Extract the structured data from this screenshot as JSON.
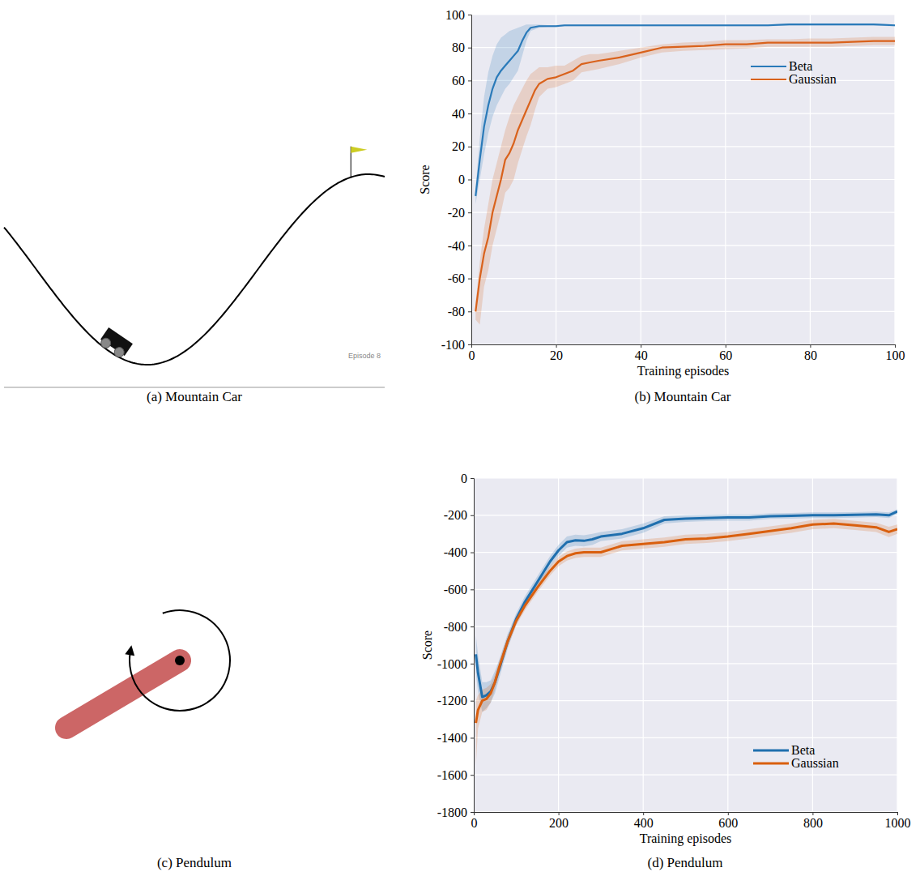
{
  "chart_data": [
    {
      "type": "illustration",
      "caption": "(a) Mountain Car",
      "annotation": "Episode 8"
    },
    {
      "type": "line",
      "caption": "(b) Mountain Car",
      "x_label": "Training episodes",
      "y_label": "Score",
      "x": [
        1,
        2,
        3,
        4,
        5,
        6,
        7,
        8,
        9,
        10,
        11,
        12,
        13,
        14,
        15,
        16,
        18,
        20,
        22,
        24,
        26,
        28,
        30,
        35,
        40,
        45,
        50,
        55,
        60,
        65,
        70,
        75,
        80,
        85,
        90,
        95,
        100
      ],
      "xlim": [
        0,
        100
      ],
      "xticks": [
        0,
        20,
        40,
        60,
        80,
        100
      ],
      "ylim": [
        -100,
        100
      ],
      "yticks": [
        -100,
        -80,
        -60,
        -40,
        -20,
        0,
        20,
        40,
        60,
        80,
        100
      ],
      "grid": true,
      "legend": "upper right",
      "series": [
        {
          "name": "Beta",
          "color": "#2a7ab9",
          "values": [
            -10,
            12,
            32,
            45,
            55,
            62,
            66,
            69,
            72,
            75,
            78,
            84,
            89,
            92,
            92.5,
            93,
            93,
            93,
            93.5,
            93.5,
            93.5,
            93.5,
            93.5,
            93.5,
            93.5,
            93.5,
            93.5,
            93.5,
            93.5,
            93.5,
            93.5,
            94,
            94,
            94,
            94,
            94,
            93.5
          ],
          "upper": [
            -5,
            25,
            50,
            65,
            75,
            82,
            86,
            88,
            90,
            91,
            92,
            93,
            94,
            94,
            94,
            94,
            93.6,
            93.6,
            94.1,
            94.1,
            94.1,
            94.1,
            94.1,
            94.1,
            94.1,
            94.1,
            94.1,
            94.1,
            94.1,
            94.1,
            94.1,
            94.6,
            94.6,
            94.6,
            94.6,
            94.6,
            94.1
          ],
          "lower": [
            -15,
            0,
            15,
            28,
            38,
            45,
            50,
            55,
            58,
            62,
            66,
            75,
            84,
            90,
            91,
            92,
            92.4,
            92.4,
            92.9,
            92.9,
            92.9,
            92.9,
            92.9,
            92.9,
            92.9,
            92.9,
            92.9,
            92.9,
            92.9,
            92.9,
            92.9,
            93.4,
            93.4,
            93.4,
            93.4,
            93.4,
            92.9
          ]
        },
        {
          "name": "Gaussian",
          "color": "#d9621c",
          "values": [
            -80,
            -60,
            -45,
            -35,
            -20,
            -10,
            0,
            12,
            16,
            22,
            30,
            36,
            42,
            48,
            54,
            58,
            61,
            62,
            64,
            66,
            70,
            71,
            72,
            74,
            77,
            80,
            80.5,
            81,
            82,
            82,
            83,
            83,
            83,
            83,
            83.5,
            84,
            84
          ],
          "upper": [
            -75,
            -50,
            -30,
            -15,
            0,
            10,
            20,
            30,
            38,
            45,
            50,
            55,
            60,
            64,
            66,
            68,
            68,
            69,
            69,
            72,
            75,
            76,
            76,
            78,
            80,
            82,
            83,
            83.5,
            84.5,
            84.5,
            85,
            85,
            85.5,
            85.5,
            86,
            86.5,
            86.5
          ],
          "lower": [
            -85,
            -88,
            -65,
            -55,
            -40,
            -30,
            -20,
            -8,
            -5,
            0,
            10,
            18,
            26,
            33,
            42,
            50,
            55,
            56,
            58,
            60,
            65,
            66,
            67,
            70,
            74,
            77,
            78,
            78.5,
            79,
            79.5,
            80.5,
            80.5,
            80.5,
            80.5,
            81,
            81.5,
            81.5
          ]
        }
      ]
    },
    {
      "type": "illustration",
      "caption": "(c) Pendulum"
    },
    {
      "type": "line",
      "caption": "(d) Pendulum",
      "x_label": "Training episodes",
      "y_label": "Score",
      "x": [
        5,
        10,
        20,
        30,
        40,
        50,
        60,
        80,
        100,
        120,
        150,
        180,
        200,
        220,
        240,
        260,
        280,
        300,
        350,
        400,
        450,
        500,
        550,
        600,
        650,
        700,
        750,
        800,
        850,
        900,
        950,
        980,
        1000
      ],
      "xlim": [
        0,
        1000
      ],
      "xticks": [
        0,
        200,
        400,
        600,
        800,
        1000
      ],
      "ylim": [
        -1800,
        0
      ],
      "yticks": [
        -1800,
        -1600,
        -1400,
        -1200,
        -1000,
        -800,
        -600,
        -400,
        -200,
        0
      ],
      "grid": true,
      "legend": "lower right",
      "series": [
        {
          "name": "Beta",
          "color": "#1f6fae",
          "values": [
            -950,
            -1050,
            -1180,
            -1170,
            -1150,
            -1100,
            -1030,
            -880,
            -760,
            -670,
            -560,
            -450,
            -390,
            -345,
            -335,
            -338,
            -330,
            -315,
            -300,
            -270,
            -225,
            -218,
            -215,
            -212,
            -212,
            -205,
            -203,
            -200,
            -200,
            -198,
            -195,
            -200,
            -180
          ],
          "upper": [
            -850,
            -950,
            -1100,
            -1100,
            -1090,
            -1040,
            -980,
            -840,
            -730,
            -640,
            -530,
            -420,
            -360,
            -315,
            -305,
            -308,
            -300,
            -290,
            -275,
            -245,
            -205,
            -200,
            -198,
            -195,
            -195,
            -190,
            -188,
            -185,
            -185,
            -183,
            -180,
            -185,
            -168
          ],
          "lower": [
            -1050,
            -1150,
            -1260,
            -1240,
            -1210,
            -1160,
            -1080,
            -920,
            -790,
            -700,
            -590,
            -480,
            -420,
            -375,
            -365,
            -368,
            -360,
            -340,
            -325,
            -295,
            -245,
            -236,
            -232,
            -229,
            -229,
            -220,
            -218,
            -215,
            -215,
            -213,
            -210,
            -215,
            -192
          ]
        },
        {
          "name": "Gaussian",
          "color": "#d95f0e",
          "values": [
            -1320,
            -1250,
            -1200,
            -1190,
            -1160,
            -1100,
            -1020,
            -880,
            -770,
            -690,
            -590,
            -500,
            -450,
            -420,
            -405,
            -400,
            -400,
            -400,
            -365,
            -355,
            -345,
            -330,
            -325,
            -315,
            -300,
            -285,
            -270,
            -250,
            -245,
            -255,
            -265,
            -290,
            -275
          ],
          "upper": [
            -1200,
            -1170,
            -1140,
            -1130,
            -1110,
            -1060,
            -985,
            -850,
            -745,
            -665,
            -565,
            -475,
            -425,
            -395,
            -380,
            -375,
            -375,
            -375,
            -340,
            -330,
            -320,
            -305,
            -300,
            -290,
            -275,
            -260,
            -245,
            -225,
            -220,
            -230,
            -240,
            -262,
            -250
          ],
          "lower": [
            -1550,
            -1350,
            -1260,
            -1250,
            -1210,
            -1140,
            -1055,
            -910,
            -795,
            -715,
            -615,
            -525,
            -475,
            -445,
            -430,
            -425,
            -425,
            -425,
            -390,
            -380,
            -370,
            -355,
            -350,
            -340,
            -325,
            -310,
            -295,
            -275,
            -270,
            -280,
            -290,
            -318,
            -300
          ]
        }
      ]
    }
  ]
}
